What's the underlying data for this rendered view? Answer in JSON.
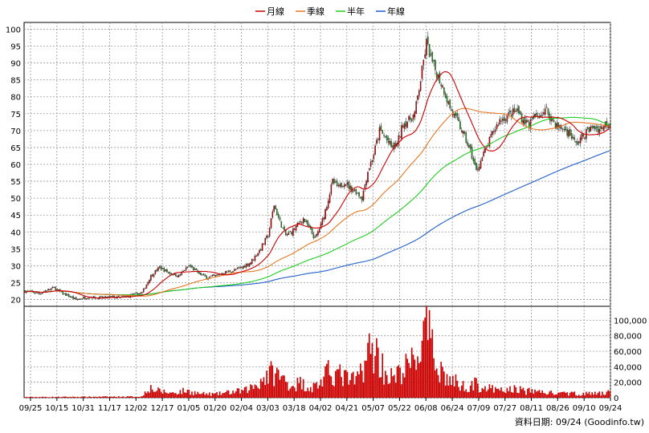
{
  "chart_data": [
    {
      "type": "candlestick",
      "panel": "price",
      "legend": [
        {
          "name": "月線",
          "color": "#cc0000"
        },
        {
          "name": "季線",
          "color": "#e87722"
        },
        {
          "name": "半年",
          "color": "#22cc22"
        },
        {
          "name": "年線",
          "color": "#1f5fcc"
        }
      ],
      "legend_placement": "top-center",
      "up_color": "#cc0000",
      "down_color": "#1a8c1a",
      "ylim": [
        18,
        102
      ],
      "yticks": [
        20,
        25,
        30,
        35,
        40,
        45,
        50,
        55,
        60,
        65,
        70,
        75,
        80,
        85,
        90,
        95,
        100
      ],
      "grid": true,
      "x_tick_labels": [
        "09/25",
        "10/15",
        "10/31",
        "11/17",
        "12/02",
        "12/17",
        "01/05",
        "01/20",
        "02/04",
        "03/03",
        "03/18",
        "04/02",
        "04/21",
        "05/07",
        "05/22",
        "06/08",
        "06/24",
        "07/09",
        "07/27",
        "08/11",
        "08/26",
        "09/10",
        "09/24"
      ],
      "close_anchors": [
        [
          0,
          22.5
        ],
        [
          5,
          22.2
        ],
        [
          10,
          21.8
        ],
        [
          15,
          22.8
        ],
        [
          20,
          23.5
        ],
        [
          25,
          22.0
        ],
        [
          30,
          21.0
        ],
        [
          35,
          20.0
        ],
        [
          40,
          20.5
        ],
        [
          45,
          20.8
        ],
        [
          50,
          20.5
        ],
        [
          55,
          20.6
        ],
        [
          60,
          20.8
        ],
        [
          65,
          20.5
        ],
        [
          70,
          21.0
        ],
        [
          75,
          21.5
        ],
        [
          80,
          22.0
        ],
        [
          86,
          27.0
        ],
        [
          92,
          29.5
        ],
        [
          98,
          28.0
        ],
        [
          105,
          27.0
        ],
        [
          112,
          30.0
        ],
        [
          118,
          28.0
        ],
        [
          124,
          26.5
        ],
        [
          130,
          27.0
        ],
        [
          136,
          28.0
        ],
        [
          142,
          28.5
        ],
        [
          148,
          29.5
        ],
        [
          154,
          31.0
        ],
        [
          160,
          34.5
        ],
        [
          166,
          39.0
        ],
        [
          170,
          48.0
        ],
        [
          174,
          43.0
        ],
        [
          178,
          39.0
        ],
        [
          182,
          40.0
        ],
        [
          186,
          42.0
        ],
        [
          190,
          44.0
        ],
        [
          194,
          41.0
        ],
        [
          198,
          38.0
        ],
        [
          202,
          42.0
        ],
        [
          206,
          48.0
        ],
        [
          210,
          55.0
        ],
        [
          214,
          53.0
        ],
        [
          218,
          55.0
        ],
        [
          222,
          53.0
        ],
        [
          226,
          52.0
        ],
        [
          230,
          50.0
        ],
        [
          234,
          58.0
        ],
        [
          238,
          63.0
        ],
        [
          242,
          70.0
        ],
        [
          246,
          68.0
        ],
        [
          250,
          65.0
        ],
        [
          254,
          66.0
        ],
        [
          258,
          72.0
        ],
        [
          262,
          73.0
        ],
        [
          266,
          75.0
        ],
        [
          270,
          85.0
        ],
        [
          274,
          96.0
        ],
        [
          278,
          90.0
        ],
        [
          282,
          86.0
        ],
        [
          286,
          82.0
        ],
        [
          289,
          78.0
        ],
        [
          292,
          75.0
        ],
        [
          296,
          72.0
        ],
        [
          300,
          68.0
        ],
        [
          304,
          64.0
        ],
        [
          308,
          58.0
        ],
        [
          312,
          62.0
        ],
        [
          316,
          66.0
        ],
        [
          320,
          70.0
        ],
        [
          324,
          73.0
        ],
        [
          328,
          74.0
        ],
        [
          332,
          75.0
        ],
        [
          336,
          76.0
        ],
        [
          340,
          73.0
        ],
        [
          344,
          72.0
        ],
        [
          348,
          74.0
        ],
        [
          352,
          75.0
        ],
        [
          356,
          76.0
        ],
        [
          360,
          73.0
        ],
        [
          364,
          71.0
        ],
        [
          368,
          70.5
        ],
        [
          372,
          69.0
        ],
        [
          376,
          66.0
        ],
        [
          380,
          68.0
        ],
        [
          384,
          70.0
        ],
        [
          388,
          71.0
        ],
        [
          392,
          70.5
        ],
        [
          396,
          72.0
        ],
        [
          399,
          72.5
        ]
      ]
    },
    {
      "type": "bar",
      "panel": "volume",
      "color": "#cc0000",
      "ylim": [
        0,
        118000
      ],
      "yticks": [
        0,
        20000,
        40000,
        60000,
        80000,
        100000
      ],
      "ytick_labels": [
        "0",
        "20,000",
        "40,000",
        "60,000",
        "80,000",
        "100,000"
      ],
      "grid": true,
      "volume_anchors": [
        [
          0,
          800
        ],
        [
          80,
          1500
        ],
        [
          84,
          14000
        ],
        [
          90,
          9000
        ],
        [
          100,
          6000
        ],
        [
          110,
          9000
        ],
        [
          120,
          5000
        ],
        [
          130,
          4500
        ],
        [
          140,
          7000
        ],
        [
          150,
          9000
        ],
        [
          158,
          17000
        ],
        [
          164,
          28000
        ],
        [
          170,
          33000
        ],
        [
          176,
          24000
        ],
        [
          182,
          16000
        ],
        [
          188,
          19000
        ],
        [
          196,
          13000
        ],
        [
          202,
          20000
        ],
        [
          208,
          34000
        ],
        [
          214,
          30000
        ],
        [
          220,
          24000
        ],
        [
          226,
          21000
        ],
        [
          232,
          48000
        ],
        [
          236,
          62000
        ],
        [
          240,
          58000
        ],
        [
          246,
          32000
        ],
        [
          252,
          24000
        ],
        [
          258,
          36000
        ],
        [
          264,
          44000
        ],
        [
          270,
          62000
        ],
        [
          274,
          90000
        ],
        [
          278,
          58000
        ],
        [
          282,
          44000
        ],
        [
          288,
          24000
        ],
        [
          294,
          20000
        ],
        [
          300,
          14000
        ],
        [
          306,
          18000
        ],
        [
          312,
          14000
        ],
        [
          318,
          11000
        ],
        [
          324,
          9000
        ],
        [
          330,
          10000
        ],
        [
          336,
          12000
        ],
        [
          342,
          8000
        ],
        [
          348,
          9000
        ],
        [
          354,
          7000
        ],
        [
          360,
          6000
        ],
        [
          366,
          5000
        ],
        [
          372,
          6000
        ],
        [
          378,
          5000
        ],
        [
          384,
          5500
        ],
        [
          390,
          5000
        ],
        [
          396,
          6000
        ],
        [
          399,
          12000
        ]
      ]
    }
  ],
  "footer": {
    "source_text": "資料日期: 09/24  (Goodinfo.tw)"
  }
}
